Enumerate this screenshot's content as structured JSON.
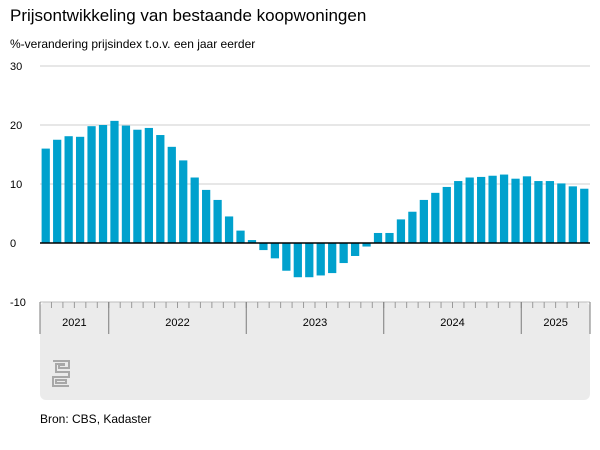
{
  "header": {
    "title": "Prijsontwikkeling van bestaande koopwoningen",
    "subtitle": "%-verandering prijsindex t.o.v. een jaar eerder"
  },
  "footer": {
    "source": "Bron: CBS, Kadaster"
  },
  "logo": {
    "icon": "cbs-logo-icon"
  },
  "colors": {
    "bar": "#00a1cd",
    "grid": "#cfcfcf",
    "zero_line": "#000000",
    "axis_band": "#ebebeb"
  },
  "chart_data": {
    "type": "bar",
    "title": "Prijsontwikkeling van bestaande koopwoningen",
    "subtitle": "%-verandering prijsindex t.o.v. een jaar eerder",
    "ylim": [
      -10,
      30
    ],
    "yticks": [
      -10,
      0,
      10,
      20,
      30
    ],
    "grid": true,
    "x_unit": "month",
    "year_labels": [
      {
        "label": "2021",
        "start": 0,
        "end": 5
      },
      {
        "label": "2022",
        "start": 6,
        "end": 17
      },
      {
        "label": "2023",
        "start": 18,
        "end": 29
      },
      {
        "label": "2024",
        "start": 30,
        "end": 41
      },
      {
        "label": "2025",
        "start": 42,
        "end": 47
      }
    ],
    "categories": [
      "2021-07",
      "2021-08",
      "2021-09",
      "2021-10",
      "2021-11",
      "2021-12",
      "2022-01",
      "2022-02",
      "2022-03",
      "2022-04",
      "2022-05",
      "2022-06",
      "2022-07",
      "2022-08",
      "2022-09",
      "2022-10",
      "2022-11",
      "2022-12",
      "2023-01",
      "2023-02",
      "2023-03",
      "2023-04",
      "2023-05",
      "2023-06",
      "2023-07",
      "2023-08",
      "2023-09",
      "2023-10",
      "2023-11",
      "2023-12",
      "2024-01",
      "2024-02",
      "2024-03",
      "2024-04",
      "2024-05",
      "2024-06",
      "2024-07",
      "2024-08",
      "2024-09",
      "2024-10",
      "2024-11",
      "2024-12",
      "2025-01",
      "2025-02",
      "2025-03",
      "2025-04",
      "2025-05",
      "2025-06"
    ],
    "values": [
      16.0,
      17.5,
      18.1,
      18.0,
      19.8,
      20.0,
      20.7,
      19.9,
      19.2,
      19.5,
      18.3,
      16.3,
      14.0,
      11.1,
      9.0,
      7.3,
      4.5,
      2.1,
      0.5,
      -1.2,
      -2.6,
      -4.7,
      -5.8,
      -5.8,
      -5.5,
      -5.1,
      -3.4,
      -2.2,
      -0.6,
      1.7,
      1.7,
      4.0,
      5.3,
      7.3,
      8.5,
      9.5,
      10.5,
      11.1,
      11.2,
      11.4,
      11.6,
      10.9,
      11.3,
      10.5,
      10.5,
      10.1,
      9.6,
      9.2
    ]
  }
}
